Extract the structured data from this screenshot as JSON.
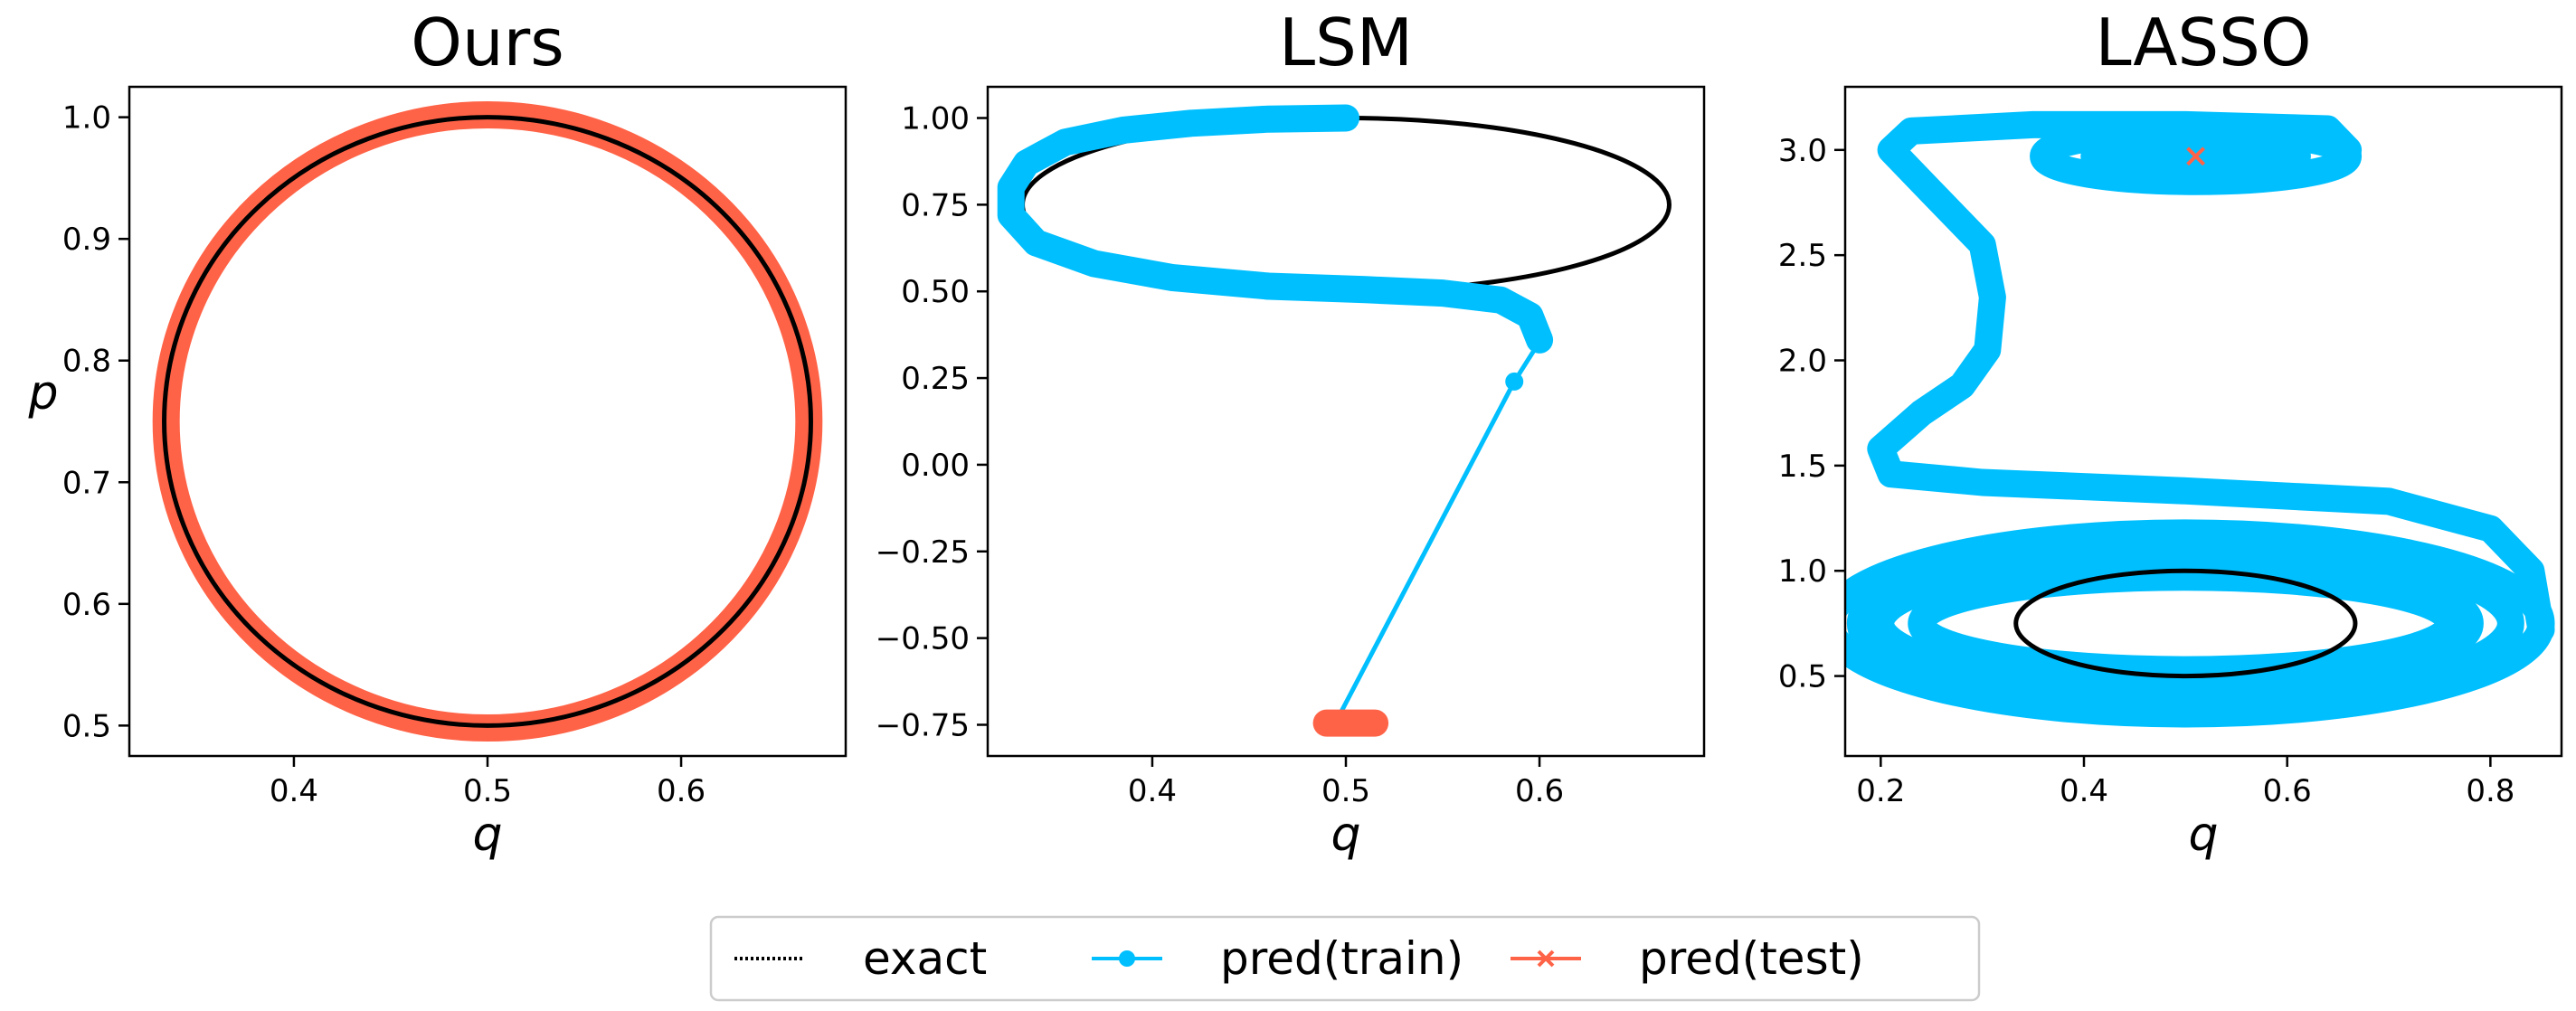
{
  "figure": {
    "legend": {
      "placement": "bottom-center",
      "entries": [
        {
          "label": "exact",
          "color": "#000000",
          "style": "dotted"
        },
        {
          "label": "pred(train)",
          "color": "#00BFFF",
          "marker": "circle"
        },
        {
          "label": "pred(test)",
          "color": "#FF6347",
          "marker": "x"
        }
      ]
    }
  },
  "chart_data": [
    {
      "type": "line",
      "title": "Ours",
      "xlabel": "q",
      "ylabel": "p",
      "xlim": [
        0.315,
        0.685
      ],
      "ylim": [
        0.475,
        1.025
      ],
      "xticks": [
        0.4,
        0.5,
        0.6
      ],
      "xticklabels": [
        "0.4",
        "0.5",
        "0.6"
      ],
      "yticks": [
        0.5,
        0.6,
        0.7,
        0.8,
        0.9,
        1.0
      ],
      "yticklabels": [
        "0.5",
        "0.6",
        "0.7",
        "0.8",
        "0.9",
        "1.0"
      ],
      "series": [
        {
          "name": "pred(test)",
          "shape": "ellipse",
          "center": [
            0.5,
            0.75
          ],
          "radius": [
            0.166,
            0.252
          ],
          "color": "#FF6347",
          "thick": true
        },
        {
          "name": "exact",
          "shape": "ellipse",
          "center": [
            0.5,
            0.75
          ],
          "radius": [
            0.167,
            0.25
          ],
          "color": "#000000"
        }
      ]
    },
    {
      "type": "line",
      "title": "LSM",
      "xlabel": "q",
      "ylabel": "",
      "xlim": [
        0.315,
        0.685
      ],
      "ylim": [
        -0.84,
        1.09
      ],
      "xticks": [
        0.4,
        0.5,
        0.6
      ],
      "xticklabels": [
        "0.4",
        "0.5",
        "0.6"
      ],
      "yticks": [
        -0.75,
        -0.5,
        -0.25,
        0.0,
        0.25,
        0.5,
        0.75,
        1.0
      ],
      "yticklabels": [
        "−0.75",
        "−0.50",
        "−0.25",
        "0.00",
        "0.25",
        "0.50",
        "0.75",
        "1.00"
      ],
      "series": [
        {
          "name": "exact",
          "shape": "ellipse",
          "center": [
            0.5,
            0.75
          ],
          "radius": [
            0.167,
            0.25
          ],
          "color": "#000000"
        },
        {
          "name": "pred(train)",
          "shape": "path",
          "color": "#00BFFF",
          "thick": true,
          "points": [
            [
              0.5,
              1.0
            ],
            [
              0.46,
              0.997
            ],
            [
              0.42,
              0.985
            ],
            [
              0.385,
              0.965
            ],
            [
              0.355,
              0.93
            ],
            [
              0.335,
              0.87
            ],
            [
              0.327,
              0.8
            ],
            [
              0.327,
              0.72
            ],
            [
              0.34,
              0.64
            ],
            [
              0.37,
              0.58
            ],
            [
              0.41,
              0.54
            ],
            [
              0.46,
              0.515
            ],
            [
              0.51,
              0.505
            ],
            [
              0.55,
              0.495
            ],
            [
              0.58,
              0.475
            ],
            [
              0.595,
              0.43
            ],
            [
              0.6,
              0.36
            ]
          ]
        },
        {
          "name": "pred(train)",
          "shape": "markers",
          "color": "#00BFFF",
          "points": [
            [
              0.6,
              0.355
            ],
            [
              0.587,
              0.24
            ]
          ]
        },
        {
          "name": "pred(train)",
          "shape": "path",
          "color": "#00BFFF",
          "thick": false,
          "points": [
            [
              0.6,
              0.355
            ],
            [
              0.587,
              0.24
            ],
            [
              0.495,
              -0.74
            ]
          ]
        },
        {
          "name": "pred(test)",
          "shape": "path",
          "color": "#FF6347",
          "thick": true,
          "points": [
            [
              0.49,
              -0.745
            ],
            [
              0.515,
              -0.745
            ]
          ]
        }
      ]
    },
    {
      "type": "line",
      "title": "LASSO",
      "xlabel": "q",
      "ylabel": "",
      "xlim": [
        0.165,
        0.87
      ],
      "ylim": [
        0.12,
        3.3
      ],
      "xticks": [
        0.2,
        0.4,
        0.6,
        0.8
      ],
      "xticklabels": [
        "0.2",
        "0.4",
        "0.6",
        "0.8"
      ],
      "yticks": [
        0.5,
        1.0,
        1.5,
        2.0,
        2.5,
        3.0
      ],
      "yticklabels": [
        "0.5",
        "1.0",
        "1.5",
        "2.0",
        "2.5",
        "3.0"
      ],
      "series": [
        {
          "name": "pred(train)",
          "shape": "ellipse",
          "center": [
            0.5,
            0.75
          ],
          "radius": [
            0.35,
            0.43
          ],
          "color": "#00BFFF",
          "thick": true
        },
        {
          "name": "pred(train)",
          "shape": "ellipse",
          "center": [
            0.5,
            0.75
          ],
          "radius": [
            0.32,
            0.37
          ],
          "color": "#00BFFF",
          "thick": true
        },
        {
          "name": "pred(train)",
          "shape": "ellipse",
          "center": [
            0.49,
            0.75
          ],
          "radius": [
            0.29,
            0.3
          ],
          "color": "#00BFFF",
          "thick": true
        },
        {
          "name": "pred(train)",
          "shape": "ellipse",
          "center": [
            0.5,
            0.75
          ],
          "radius": [
            0.26,
            0.22
          ],
          "color": "#00BFFF",
          "thick": true
        },
        {
          "name": "pred(train)",
          "shape": "ellipse",
          "center": [
            0.51,
            2.97
          ],
          "radius": [
            0.15,
            0.12
          ],
          "color": "#00BFFF",
          "thick": true
        },
        {
          "name": "pred(train)",
          "shape": "ellipse",
          "center": [
            0.51,
            2.97
          ],
          "radius": [
            0.1,
            0.07
          ],
          "color": "#00BFFF",
          "thick": true
        },
        {
          "name": "pred(train)",
          "shape": "ellipse",
          "center": [
            0.51,
            2.97
          ],
          "radius": [
            0.05,
            0.035
          ],
          "color": "#00BFFF",
          "thick": true
        },
        {
          "name": "pred(train)",
          "shape": "path",
          "color": "#00BFFF",
          "thick": true,
          "points": [
            [
              0.85,
              0.72
            ],
            [
              0.84,
              1.0
            ],
            [
              0.8,
              1.2
            ],
            [
              0.7,
              1.33
            ],
            [
              0.5,
              1.38
            ],
            [
              0.3,
              1.42
            ],
            [
              0.21,
              1.46
            ],
            [
              0.2,
              1.58
            ],
            [
              0.24,
              1.75
            ],
            [
              0.28,
              1.88
            ],
            [
              0.305,
              2.05
            ],
            [
              0.31,
              2.3
            ],
            [
              0.3,
              2.55
            ],
            [
              0.25,
              2.8
            ],
            [
              0.21,
              3.0
            ],
            [
              0.23,
              3.09
            ],
            [
              0.35,
              3.12
            ],
            [
              0.5,
              3.12
            ],
            [
              0.64,
              3.1
            ],
            [
              0.66,
              3.0
            ]
          ]
        },
        {
          "name": "exact",
          "shape": "ellipse",
          "center": [
            0.5,
            0.75
          ],
          "radius": [
            0.167,
            0.25
          ],
          "color": "#000000"
        },
        {
          "name": "pred(test)",
          "shape": "markers-x",
          "color": "#FF6347",
          "points": [
            [
              0.51,
              2.97
            ]
          ]
        }
      ]
    }
  ]
}
